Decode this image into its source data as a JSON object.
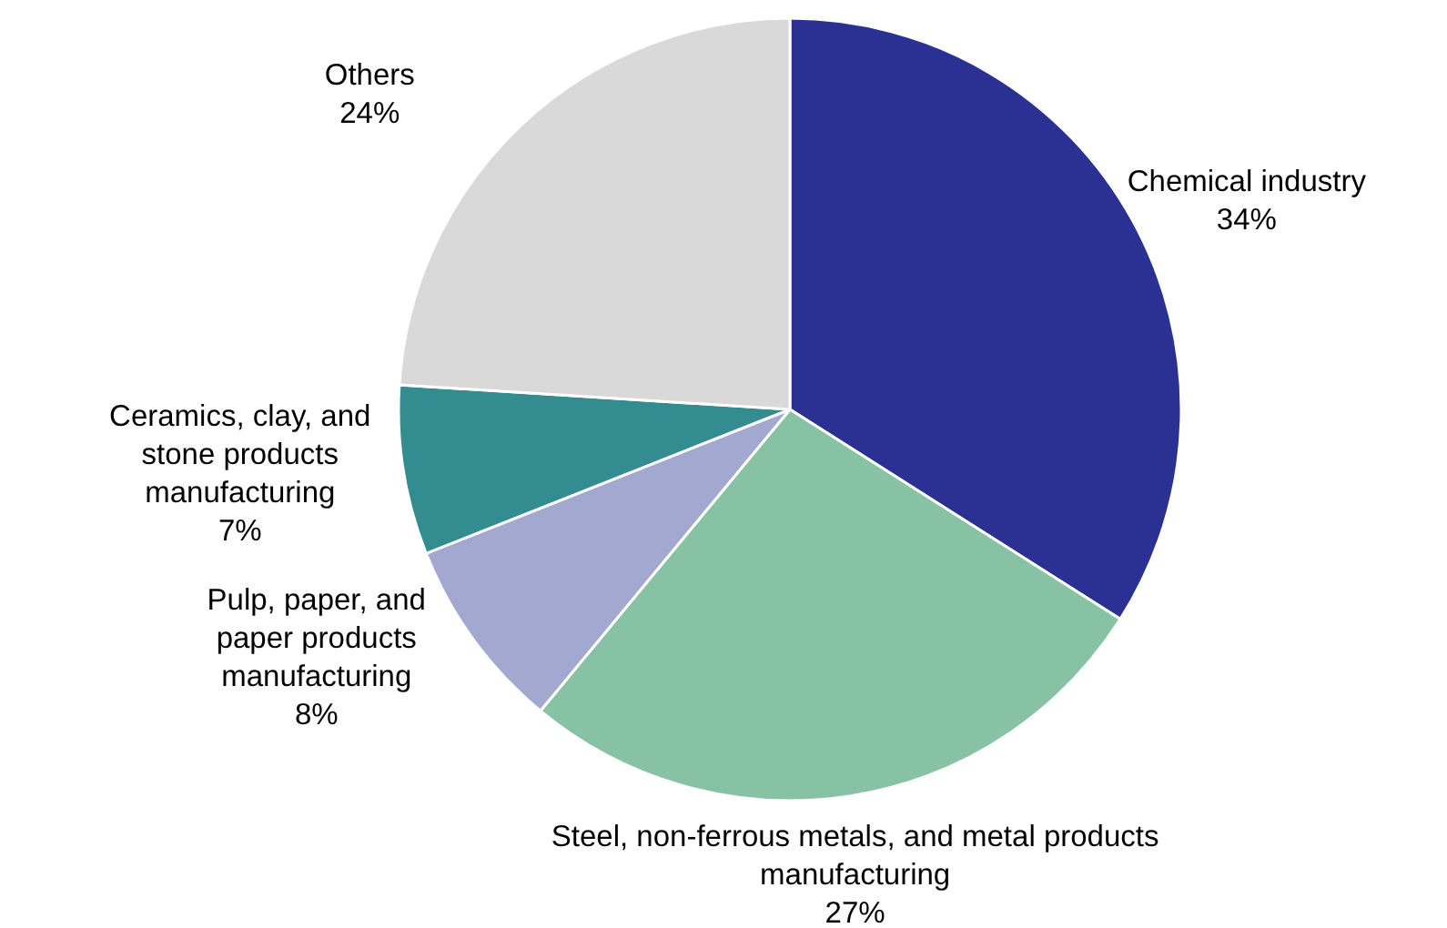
{
  "chart_data": {
    "type": "pie",
    "categories": [
      "Chemical industry",
      "Steel, non-ferrous metals, and metal products manufacturing",
      "Pulp, paper, and paper products manufacturing",
      "Ceramics, clay, and stone products manufacturing",
      "Others"
    ],
    "values": [
      34,
      27,
      8,
      7,
      24
    ],
    "value_labels": [
      "34%",
      "27%",
      "8%",
      "7%",
      "24%"
    ],
    "colors": [
      "#2b3192",
      "#88c2a4",
      "#a3a8d0",
      "#338c8f",
      "#d9d9d9"
    ]
  }
}
